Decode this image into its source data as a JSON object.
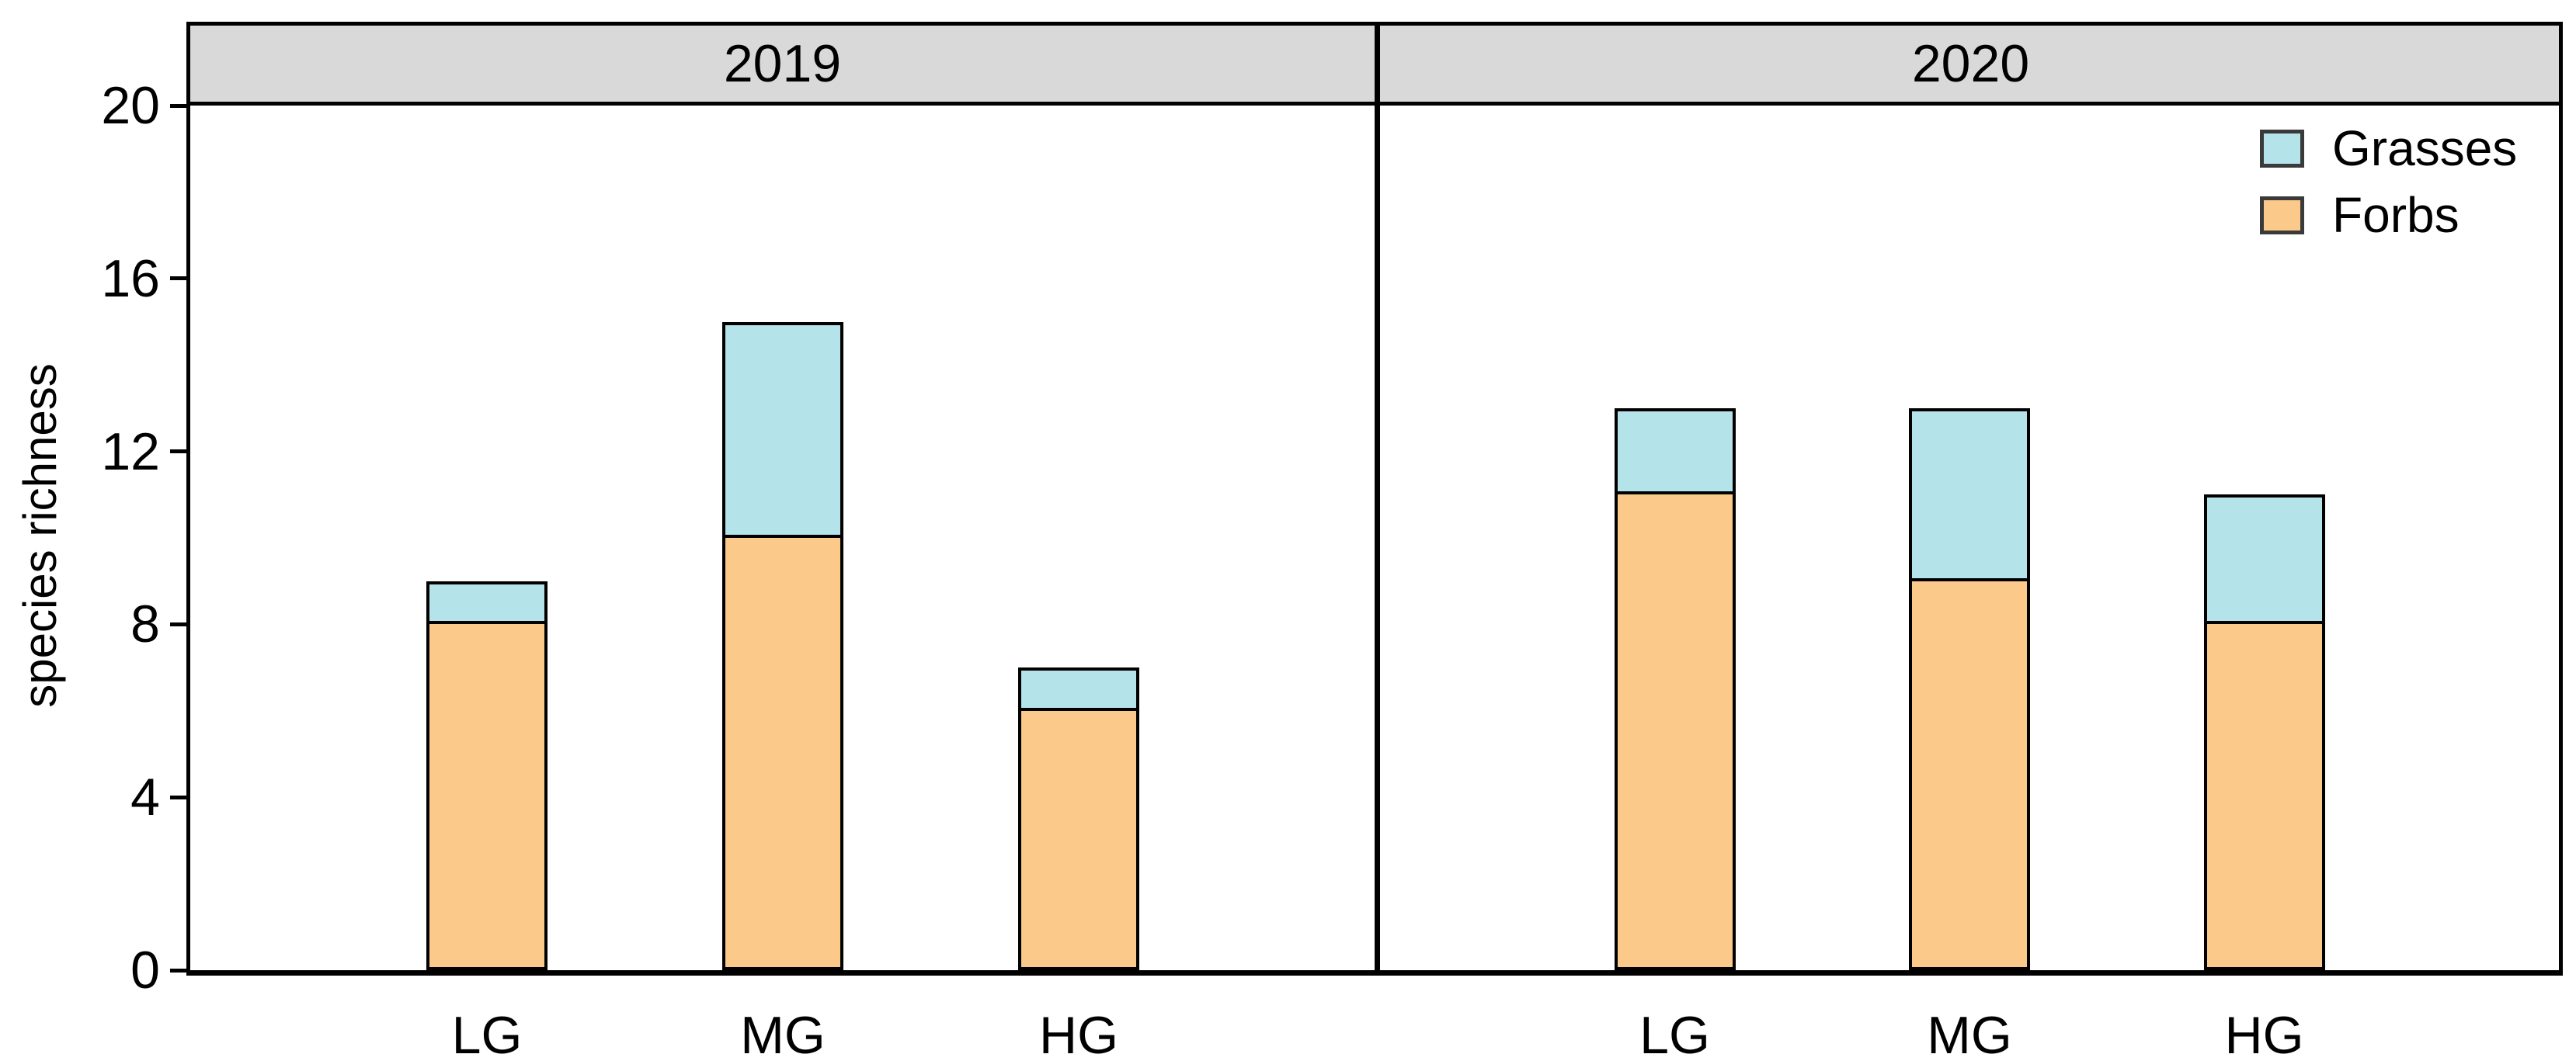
{
  "figure": {
    "background": "#FFFFFF",
    "border_color": "#000000",
    "header_bg": "#D9D9D9",
    "text_color": "#000000"
  },
  "legend": {
    "items": [
      {
        "label": "Grasses",
        "series": "Grasses"
      },
      {
        "label": "Forbs",
        "series": "Forbs"
      }
    ]
  },
  "chart_data": {
    "type": "bar",
    "stacked": true,
    "title": "",
    "xlabel": "",
    "ylabel": "species richness",
    "ylim": [
      0,
      20
    ],
    "yticks": [
      0,
      4,
      8,
      12,
      16,
      20
    ],
    "categories": [
      "LG",
      "MG",
      "HG"
    ],
    "colors": {
      "Grasses": "#B4E3EA",
      "Forbs": "#FBCA8B"
    },
    "panels": [
      {
        "label": "2019",
        "series": [
          {
            "name": "Forbs",
            "values": [
              8,
              10,
              6
            ]
          },
          {
            "name": "Grasses",
            "values": [
              1,
              5,
              1
            ]
          }
        ],
        "totals": [
          9,
          15,
          7
        ]
      },
      {
        "label": "2020",
        "series": [
          {
            "name": "Forbs",
            "values": [
              11,
              9,
              8
            ]
          },
          {
            "name": "Grasses",
            "values": [
              2,
              4,
              3
            ]
          }
        ],
        "totals": [
          13,
          13,
          11
        ]
      }
    ],
    "legend_position": "top-right",
    "grid": false
  }
}
